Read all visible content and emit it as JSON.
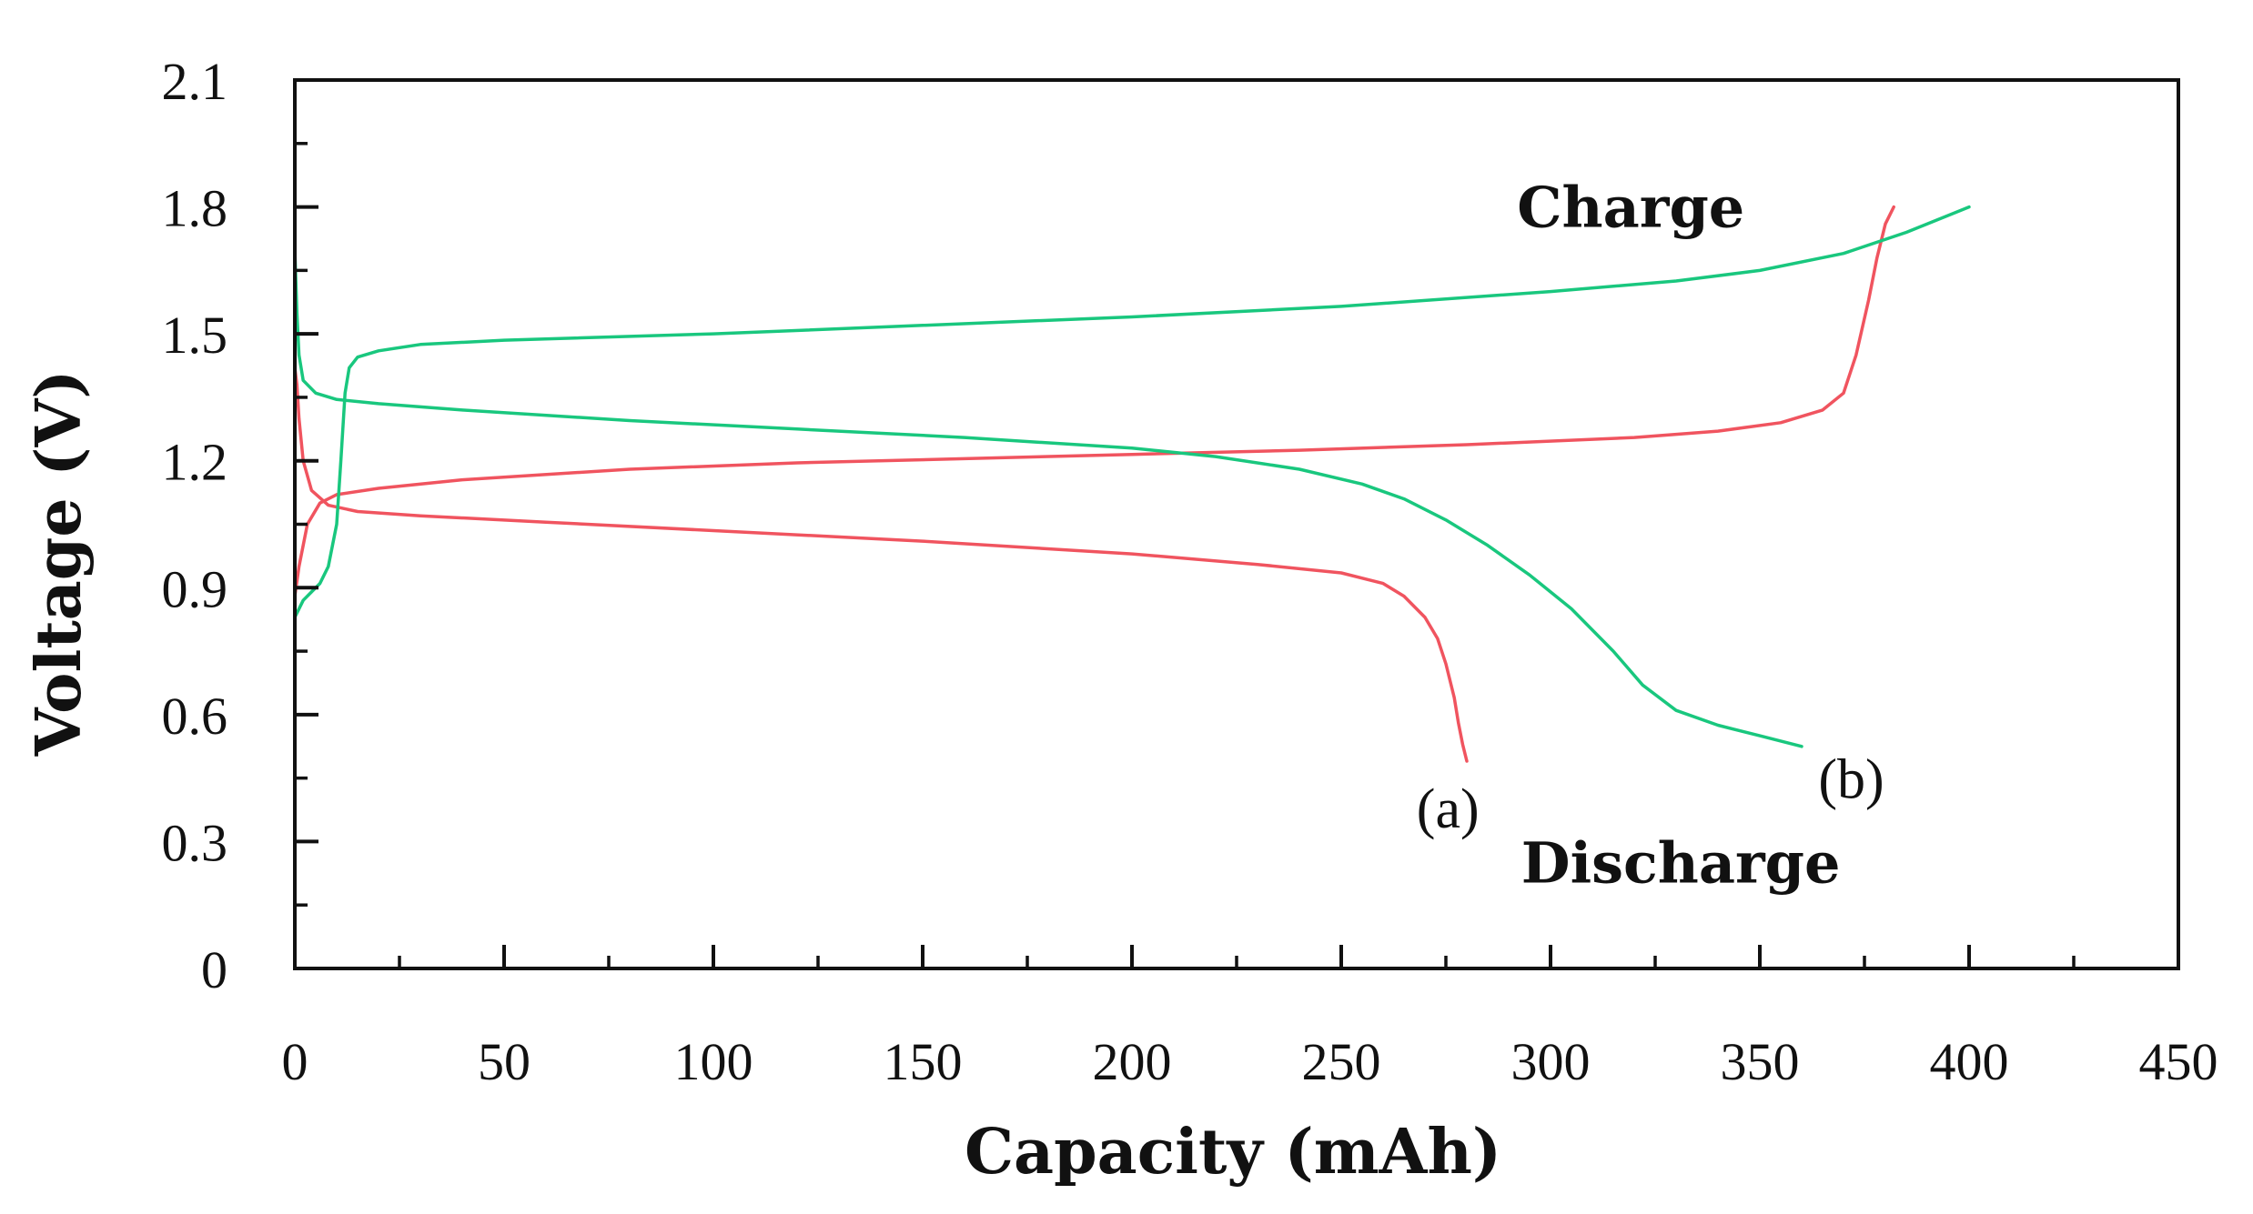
{
  "chart_data": {
    "type": "line",
    "title": "",
    "xlabel": "Capacity (mAh)",
    "ylabel": "Voltage (V)",
    "xlim": [
      0,
      450
    ],
    "ylim": [
      0,
      2.1
    ],
    "xticks": [
      0,
      50,
      100,
      150,
      200,
      250,
      300,
      350,
      400,
      450
    ],
    "xtick_labels": [
      "0",
      "50",
      "100",
      "150",
      "200",
      "250",
      "300",
      "350",
      "400",
      "450"
    ],
    "yticks": [
      0,
      0.3,
      0.6,
      0.9,
      1.2,
      1.5,
      1.8,
      2.1
    ],
    "ytick_labels": [
      "0",
      "0.3",
      "0.6",
      "0.9",
      "1.2",
      "1.5",
      "1.8",
      "2.1"
    ],
    "x_minor_step": 25,
    "y_minor_step": 0.15,
    "grid": false,
    "series": [
      {
        "name": "(a) charge",
        "color": "#f0545f",
        "x": [
          0,
          1,
          3,
          6,
          10,
          20,
          40,
          80,
          120,
          160,
          200,
          240,
          280,
          320,
          340,
          355,
          365,
          370,
          373,
          376,
          378,
          380,
          382
        ],
        "y": [
          0.88,
          0.95,
          1.05,
          1.1,
          1.12,
          1.135,
          1.155,
          1.18,
          1.195,
          1.205,
          1.215,
          1.225,
          1.238,
          1.255,
          1.27,
          1.29,
          1.32,
          1.36,
          1.45,
          1.58,
          1.68,
          1.76,
          1.8
        ]
      },
      {
        "name": "(a) discharge",
        "color": "#f0545f",
        "x": [
          0,
          0.5,
          1,
          2,
          4,
          8,
          15,
          30,
          60,
          100,
          150,
          200,
          230,
          250,
          260,
          265,
          270,
          273,
          275,
          277,
          278,
          279,
          280
        ],
        "y": [
          1.42,
          1.38,
          1.3,
          1.2,
          1.13,
          1.095,
          1.08,
          1.07,
          1.055,
          1.035,
          1.01,
          0.98,
          0.955,
          0.935,
          0.91,
          0.88,
          0.83,
          0.78,
          0.72,
          0.64,
          0.58,
          0.53,
          0.49
        ]
      },
      {
        "name": "(b) charge",
        "color": "#19c77e",
        "x": [
          0,
          2,
          4,
          6,
          8,
          10,
          11,
          12,
          13,
          15,
          20,
          30,
          50,
          100,
          150,
          200,
          250,
          300,
          330,
          350,
          370,
          385,
          400
        ],
        "y": [
          0.83,
          0.87,
          0.89,
          0.91,
          0.95,
          1.05,
          1.2,
          1.36,
          1.42,
          1.445,
          1.46,
          1.475,
          1.485,
          1.5,
          1.52,
          1.54,
          1.565,
          1.6,
          1.625,
          1.65,
          1.69,
          1.74,
          1.8
        ]
      },
      {
        "name": "(b) discharge",
        "color": "#19c77e",
        "x": [
          0,
          0.5,
          1,
          2,
          5,
          10,
          20,
          40,
          80,
          120,
          160,
          200,
          220,
          240,
          255,
          265,
          275,
          285,
          295,
          305,
          315,
          322,
          330,
          340,
          350,
          360
        ],
        "y": [
          1.7,
          1.55,
          1.45,
          1.39,
          1.36,
          1.345,
          1.335,
          1.32,
          1.295,
          1.275,
          1.255,
          1.23,
          1.21,
          1.18,
          1.145,
          1.11,
          1.06,
          1.0,
          0.93,
          0.85,
          0.75,
          0.67,
          0.61,
          0.575,
          0.55,
          0.525
        ]
      }
    ],
    "annotations": [
      {
        "text": "Charge",
        "x": 292,
        "y": 1.8,
        "style": "bold"
      },
      {
        "text": "Discharge",
        "x": 293,
        "y": 0.25,
        "style": "bold"
      },
      {
        "text": "(a)",
        "x": 268,
        "y": 0.38,
        "style": "normal"
      },
      {
        "text": "(b)",
        "x": 364,
        "y": 0.45,
        "style": "normal"
      }
    ]
  }
}
